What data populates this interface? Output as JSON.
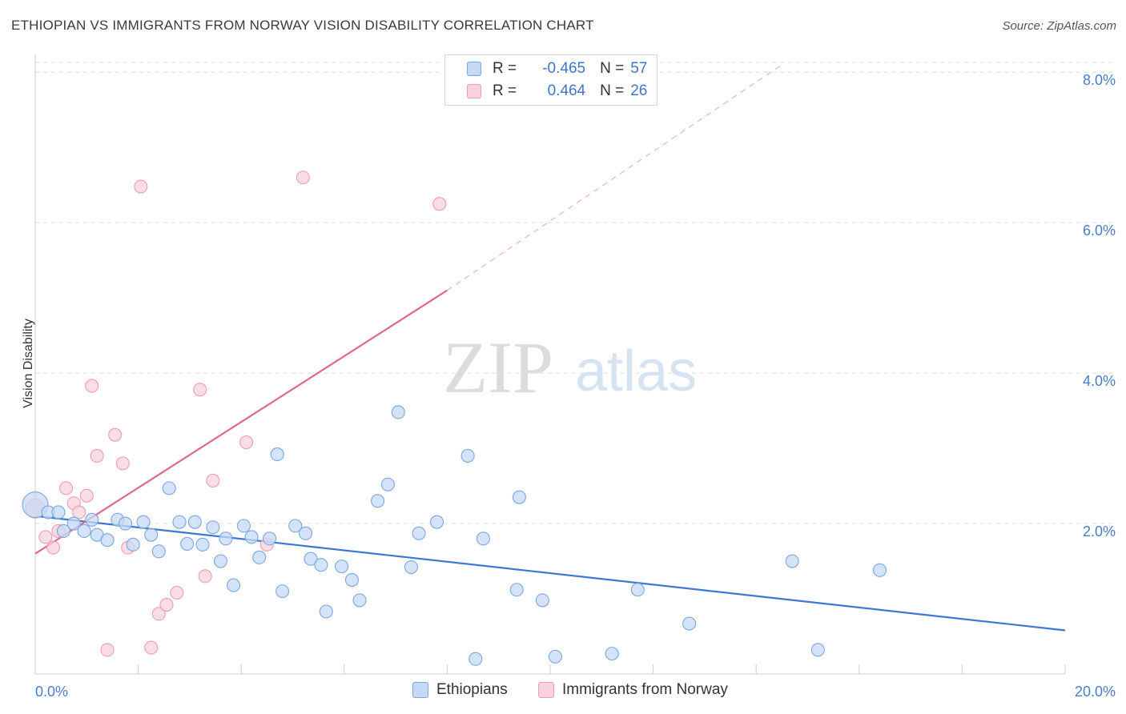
{
  "header": {
    "title": "ETHIOPIAN VS IMMIGRANTS FROM NORWAY VISION DISABILITY CORRELATION CHART",
    "source": "Source: ZipAtlas.com"
  },
  "watermark": {
    "zip": "ZIP",
    "atlas": "atlas"
  },
  "legend": {
    "rows": [
      {
        "r_label": "R =",
        "r_value": "-0.465",
        "n_label": "N =",
        "n_value": "57",
        "color": "#7aa6e0"
      },
      {
        "r_label": "R =",
        "r_value": "0.464",
        "n_label": "N =",
        "n_value": "26",
        "color": "#ef9ab4"
      }
    ]
  },
  "bottom_legend": {
    "items": [
      {
        "label": "Ethiopians",
        "fill": "#c5d9f5",
        "stroke": "#7aa6e0"
      },
      {
        "label": "Immigrants from Norway",
        "fill": "#fad1de",
        "stroke": "#ef9ab4"
      }
    ]
  },
  "chart_data": {
    "type": "scatter",
    "title": "ETHIOPIAN VS IMMIGRANTS FROM NORWAY VISION DISABILITY CORRELATION CHART",
    "xlabel": "",
    "ylabel": "Vision Disability",
    "xlim": [
      0,
      20
    ],
    "ylim": [
      0,
      8.3
    ],
    "x_tick_labels": [
      "0.0%",
      "20.0%"
    ],
    "y_ticks": [
      2,
      4,
      6,
      8
    ],
    "y_tick_labels": [
      "2.0%",
      "4.0%",
      "6.0%",
      "8.0%"
    ],
    "grid": true,
    "legend_position": "top-center",
    "series": [
      {
        "name": "Ethiopians",
        "color": "#7aa6e0",
        "fill": "#c5d9f5",
        "points": [
          [
            0.0,
            2.25
          ],
          [
            0.25,
            2.15
          ],
          [
            0.55,
            1.9
          ],
          [
            0.75,
            2.0
          ],
          [
            0.95,
            1.9
          ],
          [
            1.1,
            2.05
          ],
          [
            1.2,
            1.85
          ],
          [
            1.4,
            1.78
          ],
          [
            1.6,
            2.05
          ],
          [
            1.75,
            2.0
          ],
          [
            1.9,
            1.72
          ],
          [
            2.1,
            2.02
          ],
          [
            2.25,
            1.85
          ],
          [
            2.4,
            1.63
          ],
          [
            2.6,
            2.47
          ],
          [
            2.8,
            2.02
          ],
          [
            2.95,
            1.73
          ],
          [
            3.1,
            2.02
          ],
          [
            3.25,
            1.72
          ],
          [
            3.45,
            1.95
          ],
          [
            3.6,
            1.5
          ],
          [
            3.7,
            1.8
          ],
          [
            3.85,
            1.18
          ],
          [
            4.05,
            1.97
          ],
          [
            4.2,
            1.82
          ],
          [
            4.35,
            1.55
          ],
          [
            4.55,
            1.8
          ],
          [
            4.7,
            2.92
          ],
          [
            4.8,
            1.1
          ],
          [
            5.05,
            1.97
          ],
          [
            5.25,
            1.87
          ],
          [
            5.35,
            1.53
          ],
          [
            5.55,
            1.45
          ],
          [
            5.65,
            0.83
          ],
          [
            5.95,
            1.43
          ],
          [
            6.15,
            1.25
          ],
          [
            6.3,
            0.98
          ],
          [
            6.65,
            2.3
          ],
          [
            6.85,
            2.52
          ],
          [
            7.05,
            3.48
          ],
          [
            7.3,
            1.42
          ],
          [
            7.45,
            1.87
          ],
          [
            7.8,
            2.02
          ],
          [
            8.4,
            2.9
          ],
          [
            8.55,
            0.2
          ],
          [
            8.7,
            1.8
          ],
          [
            9.4,
            2.35
          ],
          [
            9.35,
            1.12
          ],
          [
            9.85,
            0.98
          ],
          [
            10.1,
            0.23
          ],
          [
            11.2,
            0.27
          ],
          [
            11.7,
            1.12
          ],
          [
            12.7,
            0.67
          ],
          [
            14.7,
            1.5
          ],
          [
            15.2,
            0.32
          ],
          [
            16.4,
            1.38
          ],
          [
            0.45,
            2.15
          ]
        ],
        "trend": {
          "x": [
            0,
            20
          ],
          "y": [
            2.1,
            0.58
          ]
        }
      },
      {
        "name": "Immigrants from Norway",
        "color": "#ef9ab4",
        "fill": "#fad1de",
        "points": [
          [
            0.0,
            2.2
          ],
          [
            0.2,
            1.82
          ],
          [
            0.35,
            1.68
          ],
          [
            0.45,
            1.9
          ],
          [
            0.6,
            2.47
          ],
          [
            0.75,
            2.27
          ],
          [
            0.85,
            2.15
          ],
          [
            1.0,
            2.37
          ],
          [
            1.1,
            3.83
          ],
          [
            1.2,
            2.9
          ],
          [
            1.4,
            0.32
          ],
          [
            1.55,
            3.18
          ],
          [
            1.7,
            2.8
          ],
          [
            1.8,
            1.68
          ],
          [
            2.05,
            6.48
          ],
          [
            2.25,
            0.35
          ],
          [
            2.4,
            0.8
          ],
          [
            2.55,
            0.92
          ],
          [
            2.75,
            1.08
          ],
          [
            3.2,
            3.78
          ],
          [
            3.3,
            1.3
          ],
          [
            3.45,
            2.57
          ],
          [
            4.1,
            3.08
          ],
          [
            4.5,
            1.72
          ],
          [
            5.2,
            6.6
          ],
          [
            7.85,
            6.25
          ]
        ],
        "trend": {
          "x": [
            0,
            8.0
          ],
          "y": [
            1.6,
            5.1
          ]
        },
        "trend_extension": {
          "x": [
            8.0,
            14.5
          ],
          "y": [
            5.1,
            8.1
          ]
        }
      }
    ]
  }
}
